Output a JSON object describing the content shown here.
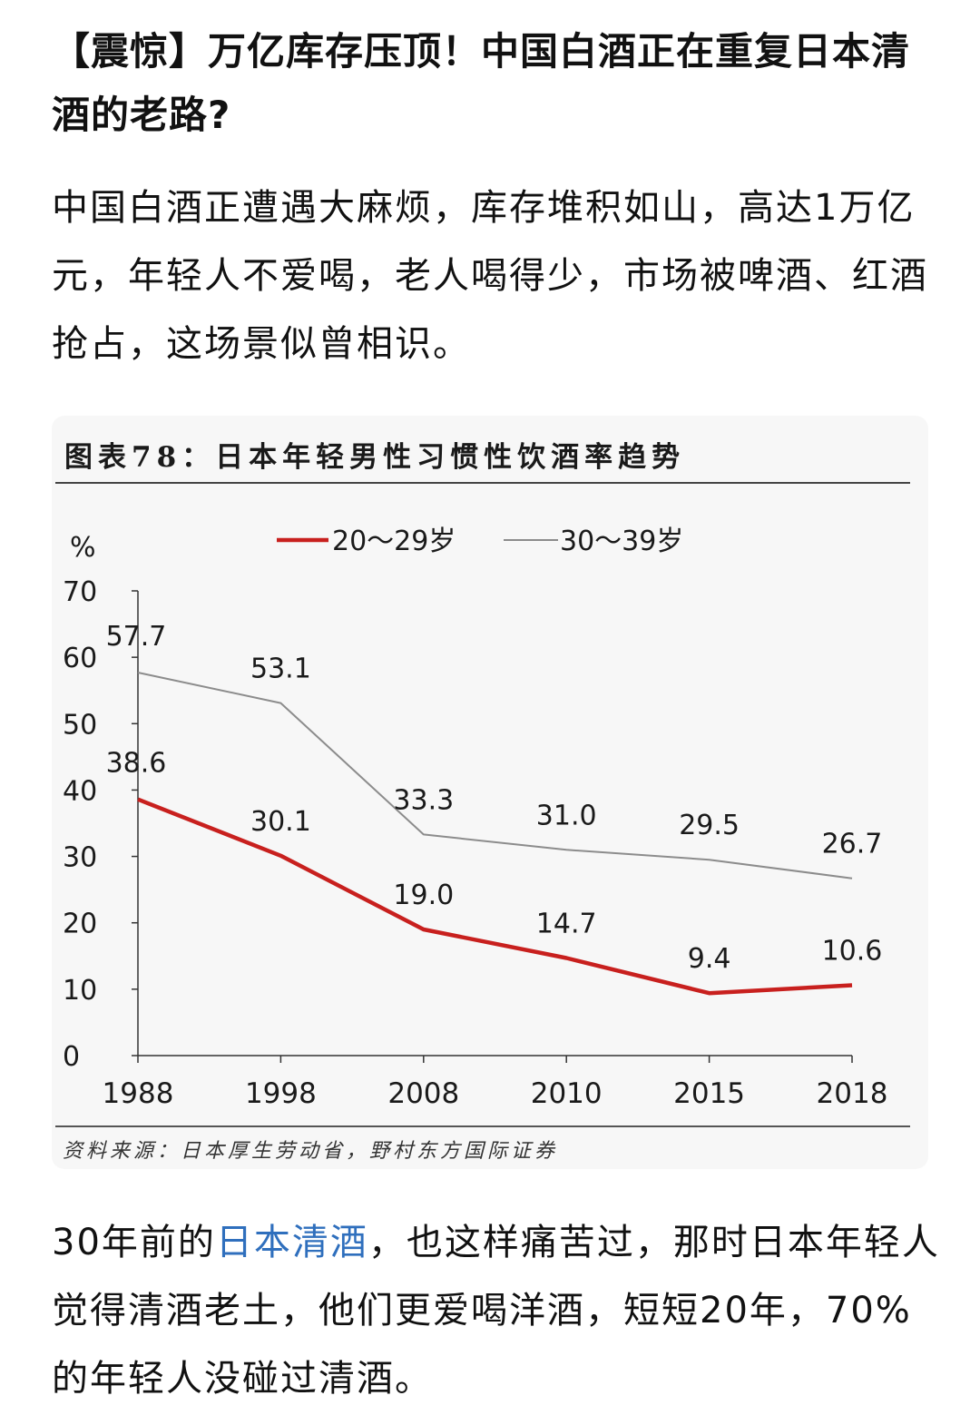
{
  "article": {
    "title": "【震惊】万亿库存压顶！中国白酒正在重复日本清酒的老路?",
    "intro": "中国白酒正遭遇大麻烦，库存堆积如山，高达1万亿元，年轻人不爱喝，老人喝得少，市场被啤酒、红酒抢占，这场景似曾相识。",
    "body_prefix": "30年前的",
    "body_link": "日本清酒",
    "body_suffix": "，也这样痛苦过，那时日本年轻人觉得清酒老土，他们更爱喝洋酒，短短20年，70%的年轻人没碰过清酒。"
  },
  "figure": {
    "caption": "图表78：日本年轻男性习惯性饮酒率趋势",
    "source": "资料来源：日本厚生劳动省，野村东方国际证券"
  },
  "colors": {
    "series_20_29": "#c8201e",
    "series_30_39": "#8c8c8c",
    "link": "#2f6fbd"
  },
  "chart_data": {
    "type": "line",
    "title": "",
    "ylabel": "%",
    "xlabel": "",
    "ylim": [
      0,
      70
    ],
    "yticks": [
      0,
      10,
      20,
      30,
      40,
      50,
      60,
      70
    ],
    "categories": [
      "1988",
      "1998",
      "2008",
      "2010",
      "2015",
      "2018"
    ],
    "legend_position": "top-center",
    "grid": false,
    "series": [
      {
        "name": "20～29岁",
        "color": "#c8201e",
        "values": [
          38.6,
          30.1,
          19.0,
          14.7,
          9.4,
          10.6
        ],
        "labels": [
          "38.6",
          "30.1",
          "19.0",
          "14.7",
          "9.4",
          "10.6"
        ]
      },
      {
        "name": "30～39岁",
        "color": "#8c8c8c",
        "values": [
          57.7,
          53.1,
          33.3,
          31.0,
          29.5,
          26.7
        ],
        "labels": [
          "57.7",
          "53.1",
          "33.3",
          "31.0",
          "29.5",
          "26.7"
        ]
      }
    ]
  }
}
